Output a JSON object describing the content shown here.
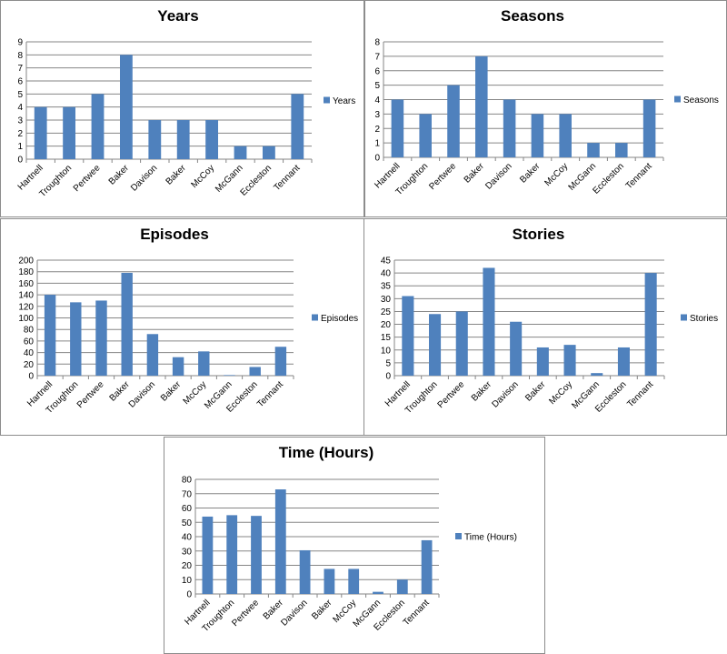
{
  "chart_data": [
    {
      "type": "bar",
      "title": "Years",
      "categories": [
        "Hartnell",
        "Troughton",
        "Pertwee",
        "Baker",
        "Davison",
        "Baker",
        "McCoy",
        "McGann",
        "Eccleston",
        "Tennant"
      ],
      "series": [
        {
          "name": "Years",
          "values": [
            4,
            4,
            5,
            8,
            3,
            3,
            3,
            1,
            1,
            5
          ]
        }
      ],
      "ylim": [
        0,
        9
      ],
      "yticks": [
        0,
        1,
        2,
        3,
        4,
        5,
        6,
        7,
        8,
        9
      ],
      "grid": true,
      "legend": "right",
      "color": "#4f81bd"
    },
    {
      "type": "bar",
      "title": "Seasons",
      "categories": [
        "Hartnell",
        "Troughton",
        "Pertwee",
        "Baker",
        "Davison",
        "Baker",
        "McCoy",
        "McGann",
        "Eccleston",
        "Tennant"
      ],
      "series": [
        {
          "name": "Seasons",
          "values": [
            4,
            3,
            5,
            7,
            4,
            3,
            3,
            1,
            1,
            4
          ]
        }
      ],
      "ylim": [
        0,
        8
      ],
      "yticks": [
        0,
        1,
        2,
        3,
        4,
        5,
        6,
        7,
        8
      ],
      "grid": true,
      "legend": "right",
      "color": "#4f81bd"
    },
    {
      "type": "bar",
      "title": "Episodes",
      "categories": [
        "Hartnell",
        "Troughton",
        "Pertwee",
        "Baker",
        "Davison",
        "Baker",
        "McCoy",
        "McGann",
        "Eccleston",
        "Tennant"
      ],
      "series": [
        {
          "name": "Episodes",
          "values": [
            140,
            127,
            130,
            178,
            72,
            32,
            42,
            1,
            15,
            50
          ]
        }
      ],
      "ylim": [
        0,
        200
      ],
      "yticks": [
        0,
        20,
        40,
        60,
        80,
        100,
        120,
        140,
        160,
        180,
        200
      ],
      "grid": true,
      "legend": "right",
      "color": "#4f81bd"
    },
    {
      "type": "bar",
      "title": "Stories",
      "categories": [
        "Hartnell",
        "Troughton",
        "Pertwee",
        "Baker",
        "Davison",
        "Baker",
        "McCoy",
        "McGann",
        "Eccleston",
        "Tennant"
      ],
      "series": [
        {
          "name": "Stories",
          "values": [
            31,
            24,
            25,
            42,
            21,
            11,
            12,
            1,
            11,
            40
          ]
        }
      ],
      "ylim": [
        0,
        45
      ],
      "yticks": [
        0,
        5,
        10,
        15,
        20,
        25,
        30,
        35,
        40,
        45
      ],
      "grid": true,
      "legend": "right",
      "color": "#4f81bd"
    },
    {
      "type": "bar",
      "title": "Time (Hours)",
      "categories": [
        "Hartnell",
        "Troughton",
        "Pertwee",
        "Baker",
        "Davison",
        "Baker",
        "McCoy",
        "McGann",
        "Eccleston",
        "Tennant"
      ],
      "series": [
        {
          "name": "Time (Hours)",
          "values": [
            54,
            55,
            54.5,
            73,
            30.5,
            17.5,
            17.5,
            1.5,
            10,
            37.5
          ]
        }
      ],
      "ylim": [
        0,
        80
      ],
      "yticks": [
        0,
        10,
        20,
        30,
        40,
        50,
        60,
        70,
        80
      ],
      "grid": true,
      "legend": "right",
      "color": "#4f81bd"
    }
  ]
}
